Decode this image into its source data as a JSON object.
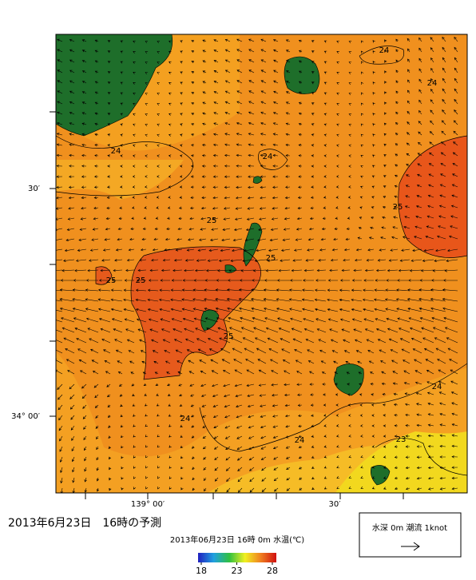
{
  "title": "2013年6月23日　16時の予測",
  "map": {
    "y_labels": [
      "30′",
      "34° 00′"
    ],
    "x_labels": [
      "139° 00′",
      "30′"
    ],
    "contour_labels": [
      24,
      24,
      24,
      24,
      25,
      25,
      25,
      25,
      25,
      25,
      24,
      24,
      24,
      23
    ]
  },
  "colorbar": {
    "label": "2013年06月23日 16時 0m 水温(℃)",
    "ticks": [
      18,
      23,
      28
    ]
  },
  "legend": {
    "label": "水深 0m 潮流 1knot"
  }
}
